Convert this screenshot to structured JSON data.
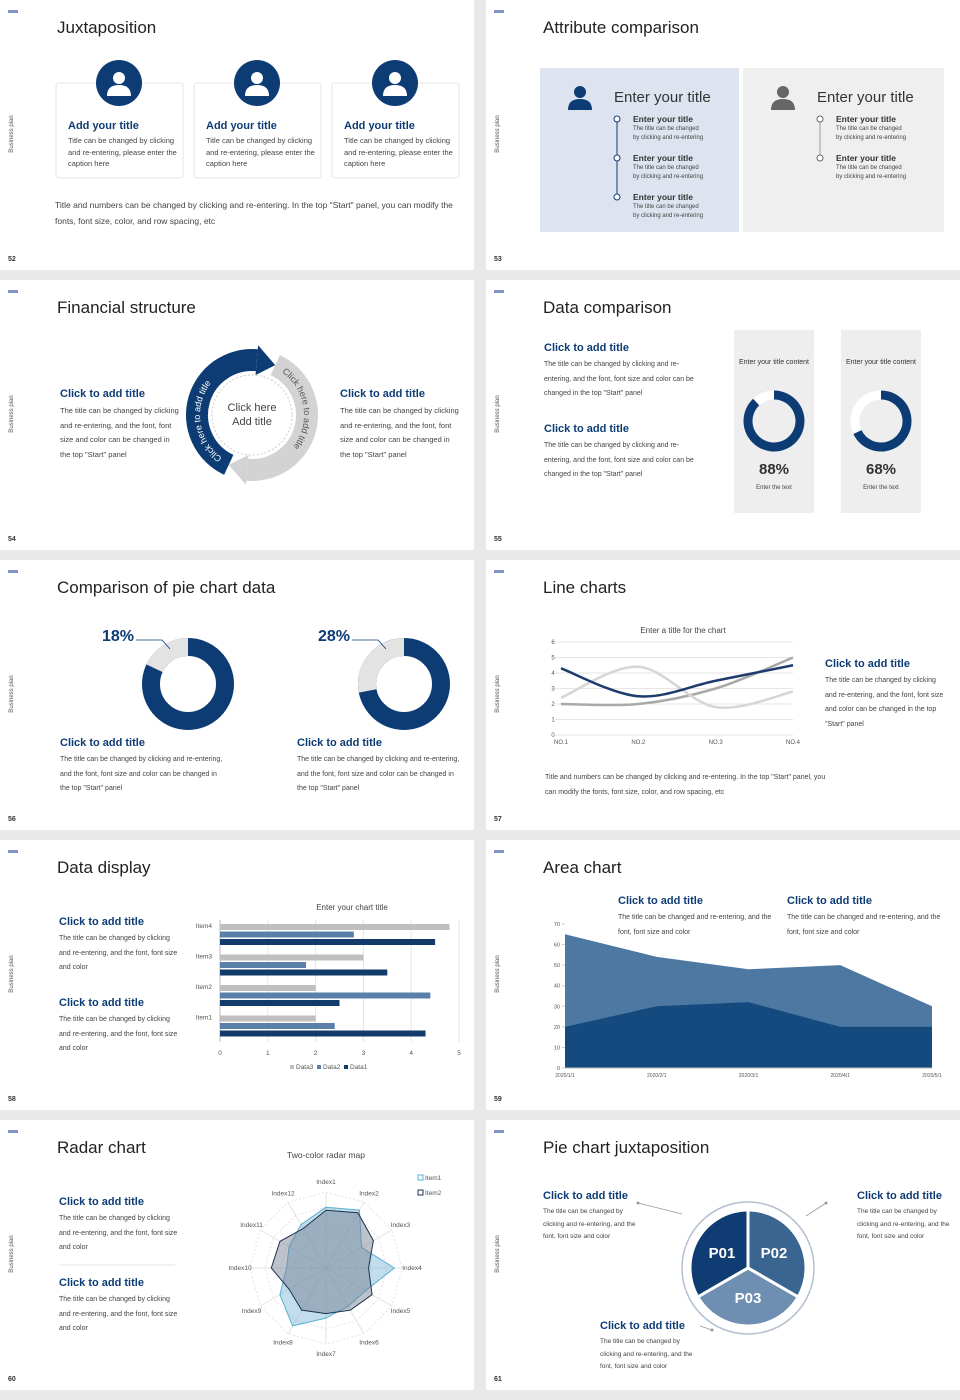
{
  "slides": [
    {
      "number": "52",
      "side": "Business plan",
      "title": "Juxtaposition",
      "cards": [
        {
          "title": "Add your title",
          "text": "Title can be changed by clicking and re-entering, please enter the caption here"
        },
        {
          "title": "Add your title",
          "text": "Title can be changed by clicking and re-entering, please enter the caption here"
        },
        {
          "title": "Add your title",
          "text": "Title can be changed by clicking and re-entering, please enter the caption here"
        }
      ],
      "footer": "Title and numbers can be changed by clicking and re-entering. In the top \"Start\" panel, you can modify the fonts, font size, color, and row spacing, etc"
    },
    {
      "number": "53",
      "side": "Business plan",
      "title": "Attribute comparison",
      "panels": [
        {
          "title": "Enter your title",
          "items": [
            {
              "title": "Enter your title",
              "text": "The title can be changed by clicking and re-entering"
            },
            {
              "title": "Enter your title",
              "text": "The title can be changed by clicking and re-entering"
            },
            {
              "title": "Enter your title",
              "text": "The title can be changed by clicking and re-entering"
            }
          ]
        },
        {
          "title": "Enter your title",
          "items": [
            {
              "title": "Enter your title",
              "text": "The title can be changed by clicking and re-entering"
            },
            {
              "title": "Enter your title",
              "text": "The title can be changed by clicking and re-entering"
            }
          ]
        }
      ]
    },
    {
      "number": "54",
      "side": "Business plan",
      "title": "Financial structure",
      "blocks": [
        {
          "title": "Click to add title",
          "text": "The title can be changed by clicking and re-entering, and the font, font size and color can be changed in the top \"Start\" panel"
        },
        {
          "title": "Click to add title",
          "text": "The title can be changed by clicking and re-entering, and the font, font size and color can be changed in the top \"Start\" panel"
        }
      ],
      "center": [
        "Click here",
        "Add title"
      ],
      "arc_texts": [
        "Click here to add title",
        "Click here to add title"
      ]
    },
    {
      "number": "55",
      "side": "Business plan",
      "title": "Data comparison",
      "blocks": [
        {
          "title": "Click to add title",
          "text": "The title can be changed by clicking and re-entering, and the font, font size and color can be changed in the top \"Start\" panel"
        },
        {
          "title": "Click to add title",
          "text": "The title can be changed by clicking and re-entering, and the font, font size and color can be changed in the top \"Start\" panel"
        }
      ],
      "cards": [
        {
          "heading": "Enter your title content",
          "value": 88,
          "value_label": "88%",
          "caption": "Enter the text"
        },
        {
          "heading": "Enter your title content",
          "value": 68,
          "value_label": "68%",
          "caption": "Enter the text"
        }
      ]
    },
    {
      "number": "56",
      "side": "Business plan",
      "title": "Comparison of pie chart data",
      "pies": [
        {
          "value": 18,
          "value_label": "18%",
          "title": "Click to add title",
          "text": "The title can be changed by clicking and re-entering, and the font, font size and color can be changed in the top \"Start\" panel"
        },
        {
          "value": 28,
          "value_label": "28%",
          "title": "Click to add title",
          "text": "The title can be changed by clicking and re-entering, and the font, font size and color can be changed in the top \"Start\" panel"
        }
      ]
    },
    {
      "number": "57",
      "side": "Business plan",
      "title": "Line charts",
      "chart": {
        "type": "line",
        "title": "Enter a title for the chart",
        "categories": [
          "NO.1",
          "NO.2",
          "NO.3",
          "NO.4"
        ],
        "series": [
          {
            "color": "#a9a9a9",
            "values": [
              2,
              2,
              3,
              5
            ]
          },
          {
            "color": "#d6d6d6",
            "values": [
              2.4,
              4.4,
              1.8,
              2.8
            ]
          },
          {
            "color": "#1c3d6c",
            "values": [
              4.3,
              2.5,
              3.5,
              4.5
            ]
          }
        ],
        "ylim": [
          0,
          6
        ],
        "yticks": [
          0,
          1,
          2,
          3,
          4,
          5,
          6
        ],
        "grid": true
      },
      "block": {
        "title": "Click to add title",
        "text": "The title can be changed by clicking and re-entering, and the font, font size and color can be changed in the top \"Start\" panel"
      },
      "footer": "Title and numbers can be changed by clicking and re-entering. In the top \"Start\" panel, you can modify the fonts, font size, color, and row spacing, etc"
    },
    {
      "number": "58",
      "side": "Business plan",
      "title": "Data display",
      "blocks": [
        {
          "title": "Click to add title",
          "text": "The title can be changed by clicking and re-entering, and the font, font size and color"
        },
        {
          "title": "Click to add title",
          "text": "The title can be changed by clicking and re-entering, and the font, font size and color"
        }
      ],
      "chart": {
        "type": "bar",
        "orientation": "horizontal",
        "title": "Enter your chart title",
        "categories": [
          "Item1",
          "Item2",
          "Item3",
          "Item4"
        ],
        "series": [
          {
            "name": "Data3",
            "color": "#bfbfbf",
            "values": [
              2,
              2,
              3,
              4.8
            ]
          },
          {
            "name": "Data2",
            "color": "#5a7fa8",
            "values": [
              2.4,
              4.4,
              1.8,
              2.8
            ]
          },
          {
            "name": "Data1",
            "color": "#123b6b",
            "values": [
              4.3,
              2.5,
              3.5,
              4.5
            ]
          }
        ],
        "xlim": [
          0,
          5
        ],
        "xticks": [
          0,
          1,
          2,
          3,
          4,
          5
        ],
        "legend": "bottom"
      }
    },
    {
      "number": "59",
      "side": "Business plan",
      "title": "Area chart",
      "blocks": [
        {
          "title": "Click to add title",
          "text": "The title can be changed and re-entering, and the font, font size and color"
        },
        {
          "title": "Click to add title",
          "text": "The title can be changed and re-entering, and the font, font size and color"
        }
      ],
      "chart": {
        "type": "area",
        "categories": [
          "2020/1/1",
          "2020/2/1",
          "2020/3/1",
          "2020/4/1",
          "2020/5/1"
        ],
        "series": [
          {
            "color": "#4d78a1",
            "values": [
              65,
              54,
              48,
              50,
              30
            ]
          },
          {
            "color": "#154a7e",
            "values": [
              20,
              30,
              32,
              20,
              20
            ]
          }
        ],
        "ylim": [
          0,
          70
        ],
        "yticks": [
          0,
          10,
          20,
          30,
          40,
          50,
          60,
          70
        ]
      }
    },
    {
      "number": "60",
      "side": "Business plan",
      "title": "Radar chart",
      "blocks": [
        {
          "title": "Click to add title",
          "text": "The title can be changed by clicking and re-entering, and the font, font size and color"
        },
        {
          "title": "Click to add title",
          "text": "The title can be changed by clicking and re-entering, and the font, font size and color"
        }
      ],
      "chart": {
        "type": "radar",
        "title": "Two-color radar map",
        "categories": [
          "Index1",
          "Index2",
          "Index3",
          "Index4",
          "Index5",
          "Index6",
          "Index7",
          "Index8",
          "Index9",
          "Index10",
          "Index11",
          "Index12"
        ],
        "series": [
          {
            "name": "Item1",
            "color": "#5bb2d6",
            "values": [
              4,
              4.4,
              2.7,
              4.5,
              3,
              2.9,
              3.3,
              4.4,
              3.5,
              2.6,
              2.8,
              3.3
            ]
          },
          {
            "name": "Item2",
            "color": "#1c3352",
            "values": [
              3.8,
              4.2,
              3.6,
              2.8,
              3.5,
              3.2,
              3,
              3.2,
              2.8,
              3.6,
              3.5,
              3
            ]
          }
        ],
        "rlim": [
          0,
          5
        ],
        "legend": "upper right"
      }
    },
    {
      "number": "61",
      "side": "Business plan",
      "title": "Pie chart juxtaposition",
      "pieces": [
        "P01",
        "P02",
        "P03"
      ],
      "blocks": [
        {
          "title": "Click to add title",
          "text": "The title can be changed by clicking and re-entering, and the font, font size and color"
        },
        {
          "title": "Click to add title",
          "text": "The title can be changed by clicking and re-entering, and the font, font size and color"
        },
        {
          "title": "Click to add title",
          "text": "The title can be changed by clicking and re-entering, and the font, font size and color"
        }
      ]
    }
  ]
}
